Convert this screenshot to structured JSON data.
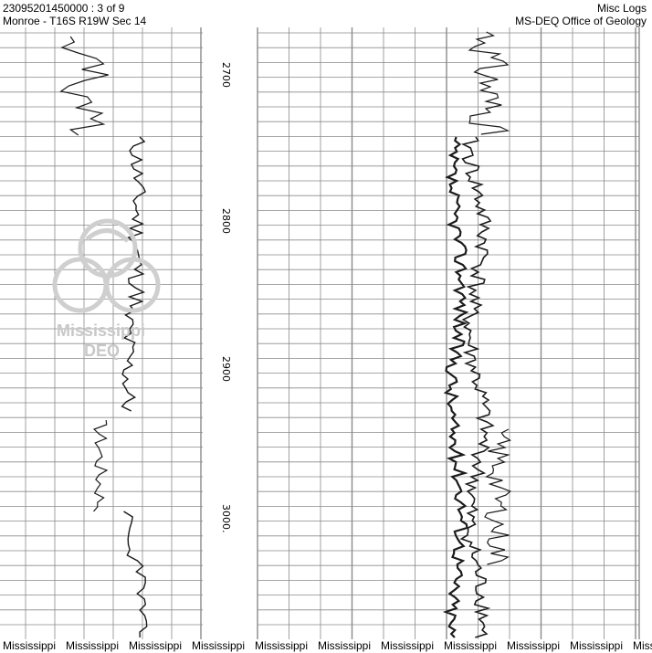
{
  "header": {
    "well_id": "23095201450000 : 3 of 9",
    "location": "Monroe - T16S R19W Sec 14",
    "category": "Misc Logs",
    "office": "MS-DEQ Office of Geology"
  },
  "depth_labels": [
    "2700",
    "2800",
    "2900",
    "3000."
  ],
  "watermark": {
    "logo": "ms-deq-seal",
    "title": "Mississippi",
    "subtitle": "DEQ"
  },
  "footer_text": "Mississippi",
  "colors": {
    "grid": "#7a7a7a",
    "curve": "#1a1a1a",
    "watermark": "#c8c8c8"
  }
}
